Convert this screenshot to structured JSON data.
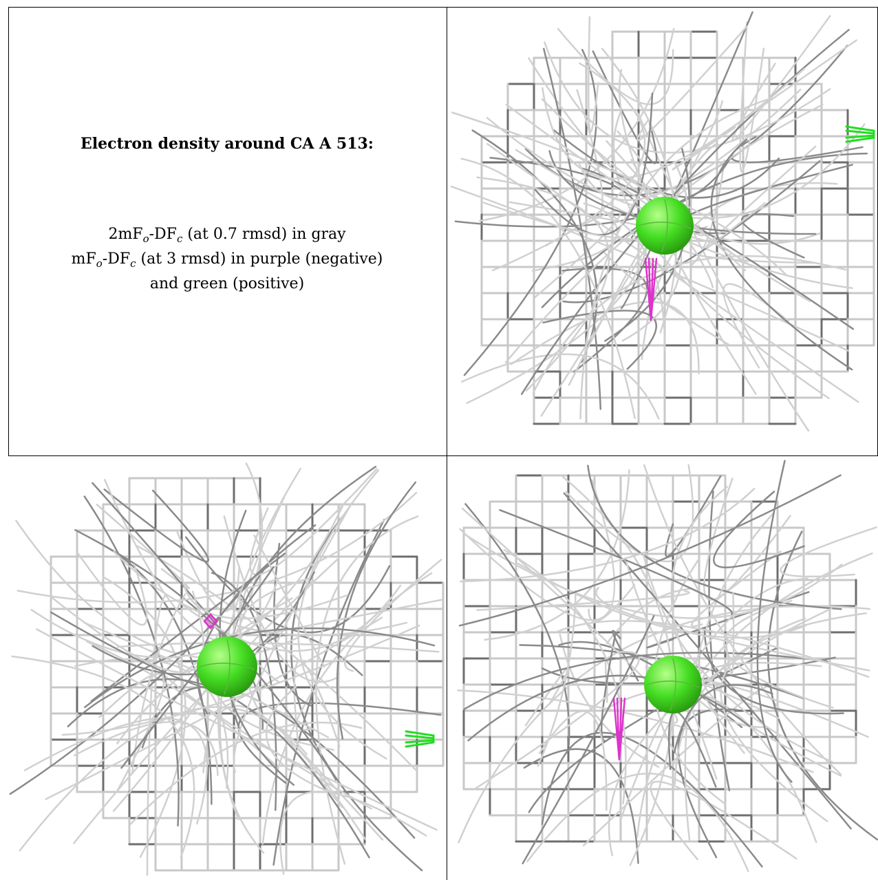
{
  "caption": {
    "title": "Electron density around CA A 513:",
    "line1_a": "2mF",
    "line1_sub_o": "o",
    "line1_b": "-DF",
    "line1_sub_c": "c",
    "line1_rest": " (at 0.7 rmsd) in gray",
    "line2_a": "mF",
    "line2_sub_o": "o",
    "line2_b": "-DF",
    "line2_sub_c": "c",
    "line2_rest": " (at 3 rmsd) in purple (negative)",
    "line3": "and green (positive)"
  },
  "colors": {
    "mesh_light": "#c8c8c8",
    "mesh_dark": "#6e6e6e",
    "atom": "#44dd22",
    "negative": "#dd33cc",
    "positive": "#22dd22"
  },
  "views": [
    {
      "name": "view-top-right"
    },
    {
      "name": "view-bottom-left"
    },
    {
      "name": "view-bottom-right"
    }
  ]
}
